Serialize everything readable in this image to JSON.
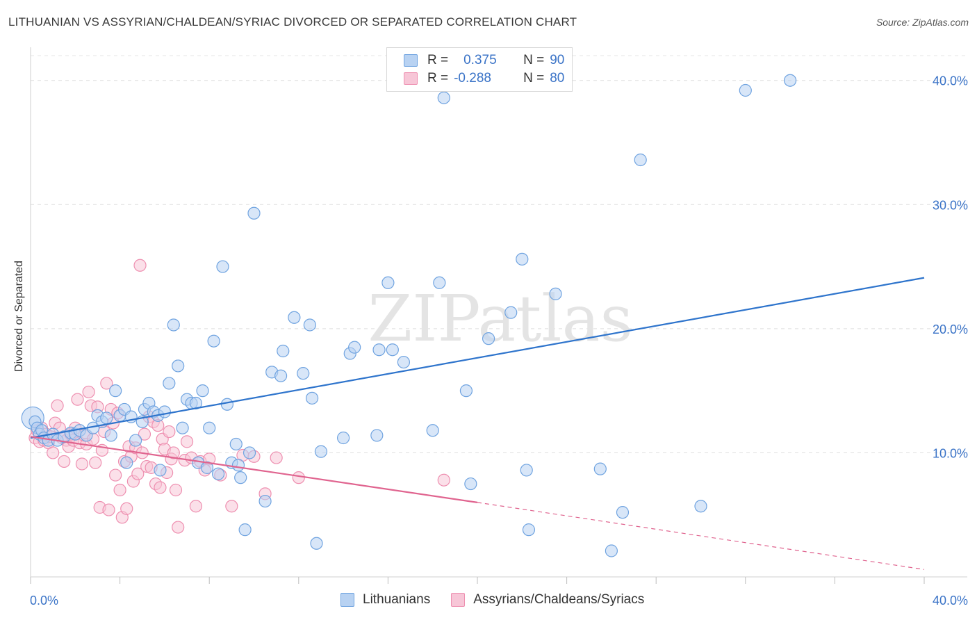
{
  "title": "LITHUANIAN VS ASSYRIAN/CHALDEAN/SYRIAC DIVORCED OR SEPARATED CORRELATION CHART",
  "source": "Source: ZipAtlas.com",
  "watermark": "ZIPatlas",
  "legend": {
    "rows": [
      {
        "r_label": "R =",
        "r_value": "0.375",
        "n_label": "N =",
        "n_value": "90"
      },
      {
        "r_label": "R =",
        "r_value": "-0.288",
        "n_label": "N =",
        "n_value": "80"
      }
    ]
  },
  "colors": {
    "blue": "#6fa3e0",
    "blue_fill": "#b8d2f2",
    "blue_line": "#2e74cc",
    "pink": "#ee8fb0",
    "pink_fill": "#f7c6d7",
    "pink_line": "#e0648f",
    "axis_text": "#3a73c7"
  },
  "chart_data": {
    "type": "scatter",
    "xlabel": "",
    "ylabel": "Divorced or Separated",
    "xlim": [
      0,
      40
    ],
    "ylim": [
      0,
      42
    ],
    "x_tick_labels": [
      "0.0%",
      "40.0%"
    ],
    "y_tick_labels": [
      "10.0%",
      "20.0%",
      "30.0%",
      "40.0%"
    ],
    "y_ticks": [
      10,
      20,
      30,
      40
    ],
    "grid": true,
    "legend_position": "bottom",
    "series": [
      {
        "name": "Lithuanians",
        "trend": {
          "x": [
            0,
            40
          ],
          "y": [
            11.2,
            24.1
          ]
        },
        "points": [
          [
            0.1,
            12.8
          ],
          [
            0.2,
            12.5
          ],
          [
            0.3,
            12.0
          ],
          [
            0.4,
            11.5
          ],
          [
            0.5,
            11.8
          ],
          [
            0.6,
            11.2
          ],
          [
            0.8,
            11.0
          ],
          [
            1.0,
            11.5
          ],
          [
            1.2,
            11.0
          ],
          [
            1.5,
            11.3
          ],
          [
            1.8,
            11.6
          ],
          [
            2.0,
            11.5
          ],
          [
            2.2,
            11.8
          ],
          [
            2.5,
            11.4
          ],
          [
            2.8,
            12.0
          ],
          [
            3.0,
            13.0
          ],
          [
            3.2,
            12.5
          ],
          [
            3.4,
            12.8
          ],
          [
            3.6,
            11.4
          ],
          [
            3.8,
            15.0
          ],
          [
            4.0,
            13.0
          ],
          [
            4.2,
            13.5
          ],
          [
            4.3,
            9.2
          ],
          [
            4.5,
            12.9
          ],
          [
            4.7,
            11.0
          ],
          [
            5.0,
            12.5
          ],
          [
            5.1,
            13.5
          ],
          [
            5.3,
            14.0
          ],
          [
            5.5,
            13.3
          ],
          [
            5.7,
            13.0
          ],
          [
            5.8,
            8.6
          ],
          [
            6.0,
            13.3
          ],
          [
            6.2,
            15.6
          ],
          [
            6.4,
            20.3
          ],
          [
            6.6,
            17.0
          ],
          [
            6.8,
            12.0
          ],
          [
            7.0,
            14.3
          ],
          [
            7.2,
            14.0
          ],
          [
            7.4,
            14.0
          ],
          [
            7.5,
            9.2
          ],
          [
            7.7,
            15.0
          ],
          [
            7.9,
            8.8
          ],
          [
            8.0,
            12.0
          ],
          [
            8.2,
            19.0
          ],
          [
            8.4,
            8.3
          ],
          [
            8.6,
            25.0
          ],
          [
            8.8,
            13.9
          ],
          [
            9.0,
            9.2
          ],
          [
            9.2,
            10.7
          ],
          [
            9.3,
            9.0
          ],
          [
            9.4,
            8.0
          ],
          [
            9.6,
            3.8
          ],
          [
            9.8,
            10.0
          ],
          [
            10.0,
            29.3
          ],
          [
            10.5,
            6.1
          ],
          [
            10.8,
            16.5
          ],
          [
            11.2,
            16.2
          ],
          [
            11.3,
            18.2
          ],
          [
            11.8,
            20.9
          ],
          [
            12.2,
            16.4
          ],
          [
            12.5,
            20.3
          ],
          [
            12.6,
            14.4
          ],
          [
            12.8,
            2.7
          ],
          [
            13.0,
            10.1
          ],
          [
            14.0,
            11.2
          ],
          [
            14.3,
            18.0
          ],
          [
            14.5,
            18.5
          ],
          [
            15.5,
            11.4
          ],
          [
            15.6,
            18.3
          ],
          [
            16.0,
            23.7
          ],
          [
            16.2,
            18.3
          ],
          [
            16.7,
            17.3
          ],
          [
            18.0,
            11.8
          ],
          [
            18.3,
            23.7
          ],
          [
            18.5,
            38.6
          ],
          [
            19.5,
            15.0
          ],
          [
            19.7,
            7.5
          ],
          [
            20.5,
            19.2
          ],
          [
            21.5,
            21.3
          ],
          [
            22.0,
            25.6
          ],
          [
            22.2,
            8.6
          ],
          [
            22.3,
            3.8
          ],
          [
            23.5,
            22.8
          ],
          [
            25.5,
            8.7
          ],
          [
            26.0,
            2.1
          ],
          [
            26.5,
            5.2
          ],
          [
            27.3,
            33.6
          ],
          [
            30.0,
            5.7
          ],
          [
            32.0,
            39.2
          ],
          [
            34.0,
            40.0
          ]
        ]
      },
      {
        "name": "Assyrians/Chaldeans/Syriacs",
        "trend": {
          "x": [
            0,
            20
          ],
          "y": [
            11.3,
            6.0
          ]
        },
        "trend_dashed": {
          "x": [
            20,
            40
          ],
          "y": [
            6.0,
            0.6
          ]
        },
        "points": [
          [
            0.2,
            11.2
          ],
          [
            0.3,
            11.8
          ],
          [
            0.4,
            10.9
          ],
          [
            0.5,
            12.0
          ],
          [
            0.6,
            11.0
          ],
          [
            0.7,
            11.5
          ],
          [
            0.8,
            10.8
          ],
          [
            0.9,
            11.3
          ],
          [
            1.0,
            10.0
          ],
          [
            1.1,
            12.4
          ],
          [
            1.2,
            13.8
          ],
          [
            1.3,
            12.0
          ],
          [
            1.4,
            11.2
          ],
          [
            1.5,
            9.3
          ],
          [
            1.6,
            11.0
          ],
          [
            1.7,
            10.5
          ],
          [
            1.8,
            11.5
          ],
          [
            1.9,
            11.0
          ],
          [
            2.0,
            12.0
          ],
          [
            2.1,
            14.3
          ],
          [
            2.2,
            10.8
          ],
          [
            2.3,
            9.1
          ],
          [
            2.4,
            11.4
          ],
          [
            2.5,
            10.7
          ],
          [
            2.6,
            14.9
          ],
          [
            2.7,
            13.8
          ],
          [
            2.8,
            11.1
          ],
          [
            2.9,
            9.2
          ],
          [
            3.0,
            13.7
          ],
          [
            3.1,
            5.6
          ],
          [
            3.2,
            10.2
          ],
          [
            3.3,
            11.7
          ],
          [
            3.4,
            15.6
          ],
          [
            3.5,
            5.4
          ],
          [
            3.6,
            13.5
          ],
          [
            3.7,
            12.4
          ],
          [
            3.8,
            8.2
          ],
          [
            3.9,
            13.2
          ],
          [
            4.0,
            7.0
          ],
          [
            4.1,
            4.8
          ],
          [
            4.2,
            9.3
          ],
          [
            4.3,
            5.5
          ],
          [
            4.4,
            10.5
          ],
          [
            4.5,
            9.7
          ],
          [
            4.6,
            7.7
          ],
          [
            4.7,
            10.4
          ],
          [
            4.8,
            8.3
          ],
          [
            4.9,
            25.1
          ],
          [
            5.0,
            10.0
          ],
          [
            5.1,
            11.5
          ],
          [
            5.2,
            8.9
          ],
          [
            5.3,
            12.9
          ],
          [
            5.4,
            8.8
          ],
          [
            5.5,
            12.5
          ],
          [
            5.6,
            7.5
          ],
          [
            5.7,
            12.2
          ],
          [
            5.8,
            7.2
          ],
          [
            5.9,
            11.1
          ],
          [
            6.0,
            10.3
          ],
          [
            6.1,
            8.4
          ],
          [
            6.2,
            11.7
          ],
          [
            6.3,
            9.5
          ],
          [
            6.4,
            10.0
          ],
          [
            6.5,
            7.0
          ],
          [
            6.6,
            4.0
          ],
          [
            6.9,
            9.4
          ],
          [
            7.0,
            10.9
          ],
          [
            7.2,
            9.6
          ],
          [
            7.4,
            5.7
          ],
          [
            7.6,
            9.3
          ],
          [
            7.8,
            8.6
          ],
          [
            8.0,
            9.5
          ],
          [
            8.5,
            8.2
          ],
          [
            9.0,
            5.7
          ],
          [
            9.5,
            9.8
          ],
          [
            10.0,
            9.7
          ],
          [
            10.5,
            6.7
          ],
          [
            11.0,
            9.6
          ],
          [
            12.0,
            8.0
          ],
          [
            18.5,
            7.8
          ]
        ]
      }
    ]
  },
  "bottom_legend": [
    {
      "label": "Lithuanians"
    },
    {
      "label": "Assyrians/Chaldeans/Syriacs"
    }
  ]
}
